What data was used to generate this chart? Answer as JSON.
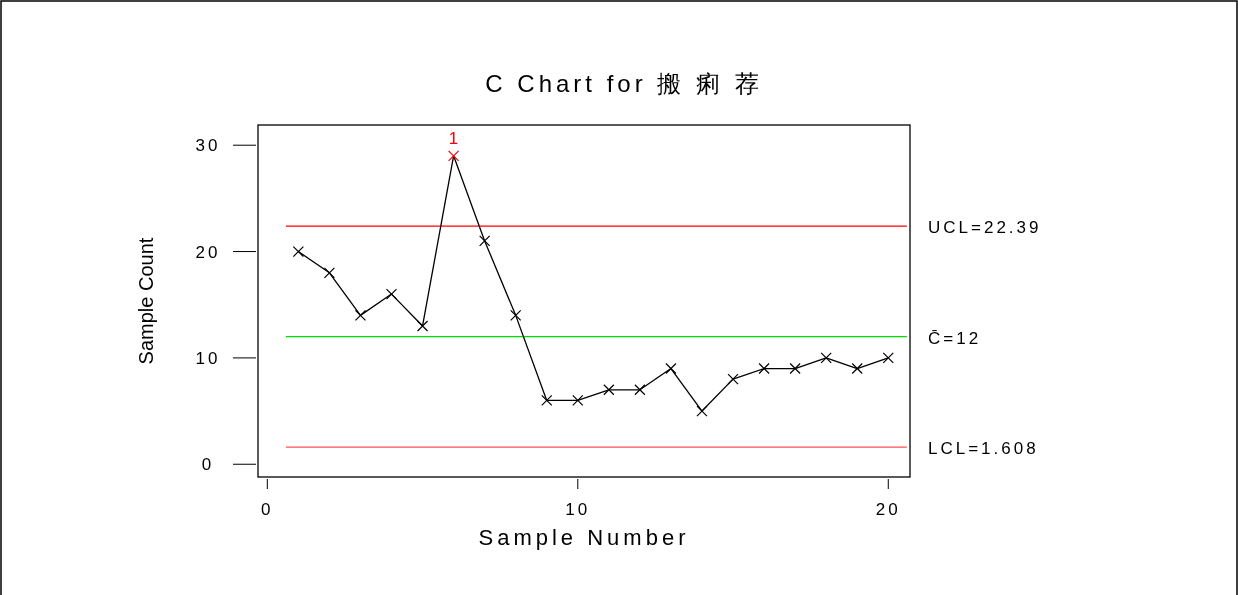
{
  "chart_data": {
    "type": "line",
    "title": "C Chart for 搬 痢 荐",
    "xlabel": "Sample Number",
    "ylabel": "Sample Count",
    "x": [
      1,
      2,
      3,
      4,
      5,
      6,
      7,
      8,
      9,
      10,
      11,
      12,
      13,
      14,
      15,
      16,
      17,
      18,
      19,
      20
    ],
    "series": [
      {
        "color": "#000000",
        "colors": [
          "#000000",
          "#000000",
          "#000000",
          "#000000",
          "#000000",
          "#ff0000",
          "#000000",
          "#000000",
          "#000000",
          "#000000",
          "#000000",
          "#000000",
          "#000000",
          "#000000",
          "#000000",
          "#000000",
          "#000000",
          "#000000",
          "#000000",
          "#000000"
        ],
        "values": [
          20,
          18,
          14,
          16,
          13,
          29,
          21,
          14,
          6,
          6,
          7,
          7,
          9,
          5,
          8,
          9,
          9,
          10,
          9,
          10
        ]
      }
    ],
    "marker": "cross",
    "line_style": "solid",
    "grid": false,
    "xlim": [
      -0.3,
      20.7
    ],
    "ylim": [
      -1.2,
      31.9
    ],
    "xticks": [
      0,
      10,
      20
    ],
    "yticks": [
      0,
      10,
      20,
      30
    ],
    "ref_lines": [
      {
        "axis": "y",
        "value": 22.39,
        "label": "UCL=22.39",
        "color": "#ff0000"
      },
      {
        "axis": "y",
        "value": 12,
        "label": "C̄=12",
        "color": "#00dd00"
      },
      {
        "axis": "y",
        "value": 1.608,
        "label": "LCL=1.608",
        "color": "#ff5050"
      }
    ],
    "annotations": [
      {
        "text": "1",
        "x": 6,
        "y": 29
      }
    ]
  }
}
